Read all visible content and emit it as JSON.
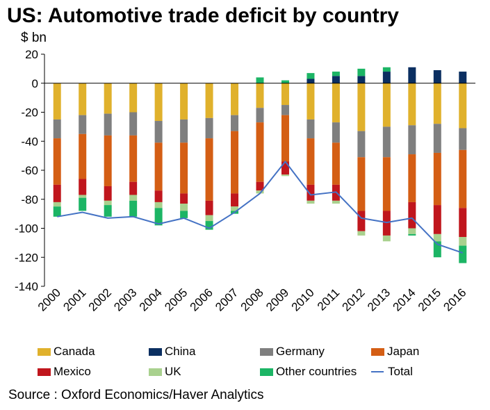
{
  "title": "US: Automotive trade deficit by country",
  "source": "Source : Oxford Economics/Haver Analytics",
  "chart_data": {
    "type": "bar",
    "stacked": true,
    "ylabel": "$ bn",
    "ylim": [
      -140,
      20
    ],
    "yticks": [
      20,
      0,
      -20,
      -40,
      -60,
      -80,
      -100,
      -120,
      -140
    ],
    "categories": [
      "2000",
      "2001",
      "2002",
      "2003",
      "2004",
      "2005",
      "2006",
      "2007",
      "2008",
      "2009",
      "2010",
      "2011",
      "2012",
      "2013",
      "2014",
      "2015",
      "2016"
    ],
    "series": [
      {
        "name": "Canada",
        "color": "#E0B12C",
        "values": [
          -25,
          -22,
          -21,
          -20,
          -26,
          -25,
          -24,
          -22,
          -17,
          -15,
          -25,
          -27,
          -33,
          -30,
          -29,
          -28,
          -31
        ]
      },
      {
        "name": "China",
        "color": "#0B2F61",
        "values": [
          0,
          0,
          0,
          0,
          0,
          0,
          0,
          0,
          0,
          0,
          3,
          5,
          5,
          8,
          11,
          9,
          8
        ]
      },
      {
        "name": "Germany",
        "color": "#7F7F7F",
        "values": [
          -13,
          -13,
          -15,
          -16,
          -15,
          -16,
          -14,
          -11,
          -10,
          -7,
          -13,
          -14,
          -18,
          -21,
          -20,
          -20,
          -15
        ]
      },
      {
        "name": "Japan",
        "color": "#D45E14",
        "values": [
          -32,
          -31,
          -35,
          -32,
          -33,
          -35,
          -43,
          -43,
          -41,
          -32,
          -32,
          -29,
          -37,
          -37,
          -33,
          -36,
          -40
        ]
      },
      {
        "name": "Mexico",
        "color": "#C0161D",
        "values": [
          -12,
          -11,
          -10,
          -9,
          -8,
          -7,
          -10,
          -9,
          -6,
          -9,
          -11,
          -11,
          -14,
          -17,
          -18,
          -20,
          -20
        ]
      },
      {
        "name": "UK",
        "color": "#A9D18E",
        "values": [
          -3,
          -2,
          -3,
          -4,
          -4,
          -5,
          -4,
          -3,
          -2,
          -1,
          -2,
          -2,
          -3,
          -4,
          -4,
          -5,
          -6
        ]
      },
      {
        "name": "Other countries",
        "color": "#1CB565",
        "values": [
          -7,
          -9,
          -8,
          -11,
          -12,
          -5,
          -6,
          -2,
          4,
          2,
          4,
          3,
          5,
          3,
          -1,
          -11,
          -12
        ]
      }
    ],
    "total": {
      "name": "Total",
      "color": "#4472C4",
      "values": [
        -92,
        -89,
        -93,
        -92,
        -97,
        -93,
        -100,
        -89,
        -76,
        -54,
        -77,
        -75,
        -93,
        -96,
        -93,
        -111,
        -117
      ]
    },
    "legend": [
      "Canada",
      "China",
      "Germany",
      "Japan",
      "Mexico",
      "UK",
      "Other countries",
      "Total"
    ]
  }
}
